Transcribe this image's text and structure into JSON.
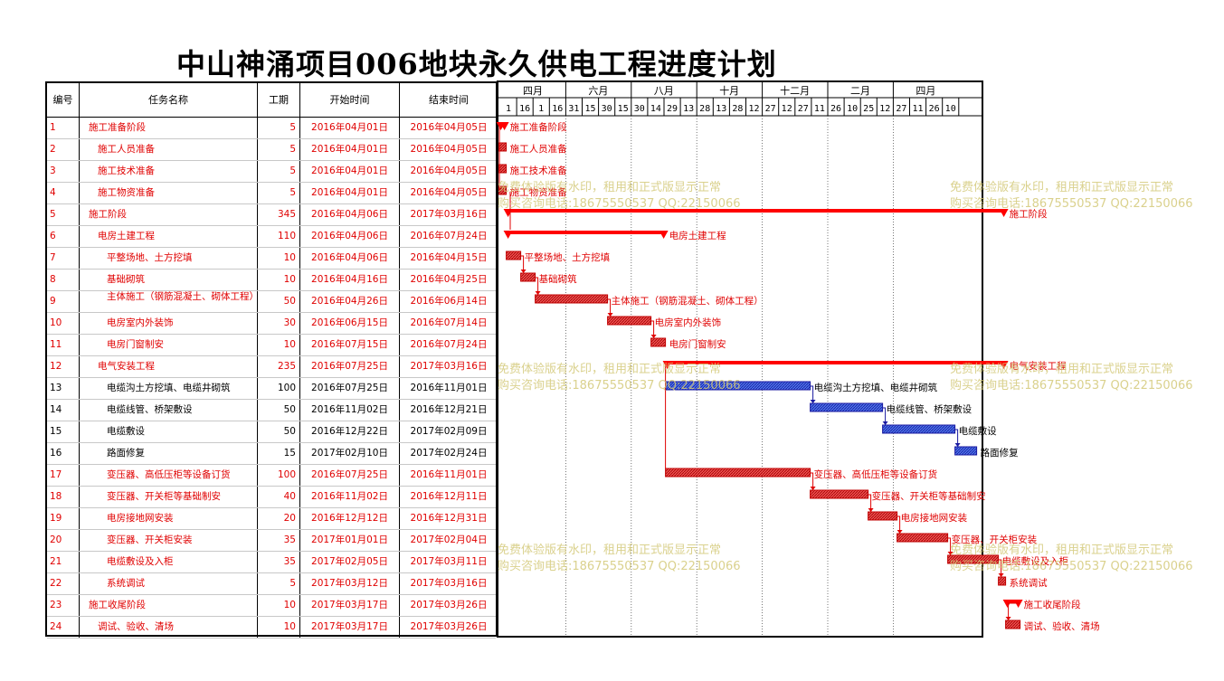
{
  "title": "中山神涌项目006地块永久供电工程进度计划",
  "columns": {
    "id": "编号",
    "name": "任务名称",
    "duration": "工期",
    "start": "开始时间",
    "end": "结束时间"
  },
  "timeline": {
    "months": [
      "四月",
      "六月",
      "八月",
      "十月",
      "十二月",
      "二月",
      "四月"
    ],
    "days": [
      "1",
      "16",
      "1",
      "16",
      "31",
      "15",
      "30",
      "15",
      "30",
      "14",
      "29",
      "13",
      "28",
      "13",
      "28",
      "12",
      "27",
      "12",
      "27",
      "11",
      "26",
      "10",
      "25",
      "12",
      "27",
      "11",
      "26",
      "10"
    ]
  },
  "watermark": {
    "line1": "免费体验版有水印，租用和正式版显示正常",
    "line2": "购买咨询电话:18675550537 QQ:22150066"
  },
  "chart_data": {
    "type": "gantt",
    "title": "中山神涌项目006地块永久供电工程进度计划",
    "tasks": [
      {
        "id": "1",
        "name": "施工准备阶段",
        "duration": "5",
        "start": "2016年04月01日",
        "end": "2016年04月05日",
        "indent": 0,
        "color": "red",
        "kind": "summary",
        "label": "施工准备阶段"
      },
      {
        "id": "2",
        "name": "施工人员准备",
        "duration": "5",
        "start": "2016年04月01日",
        "end": "2016年04月05日",
        "indent": 1,
        "color": "red",
        "kind": "task",
        "label": "施工人员准备"
      },
      {
        "id": "3",
        "name": "施工技术准备",
        "duration": "5",
        "start": "2016年04月01日",
        "end": "2016年04月05日",
        "indent": 1,
        "color": "red",
        "kind": "task",
        "label": "施工技术准备"
      },
      {
        "id": "4",
        "name": "施工物资准备",
        "duration": "5",
        "start": "2016年04月01日",
        "end": "2016年04月05日",
        "indent": 1,
        "color": "red",
        "kind": "task",
        "label": "施工物资准备"
      },
      {
        "id": "5",
        "name": "施工阶段",
        "duration": "345",
        "start": "2016年04月06日",
        "end": "2017年03月16日",
        "indent": 0,
        "color": "red",
        "kind": "summary",
        "label": "施工阶段"
      },
      {
        "id": "6",
        "name": "电房土建工程",
        "duration": "110",
        "start": "2016年04月06日",
        "end": "2016年07月24日",
        "indent": 1,
        "color": "red",
        "kind": "summary",
        "label": "电房土建工程"
      },
      {
        "id": "7",
        "name": "平整场地、土方挖填",
        "duration": "10",
        "start": "2016年04月06日",
        "end": "2016年04月15日",
        "indent": 2,
        "color": "red",
        "kind": "task",
        "label": "平整场地、土方挖填"
      },
      {
        "id": "8",
        "name": "基础砌筑",
        "duration": "10",
        "start": "2016年04月16日",
        "end": "2016年04月25日",
        "indent": 2,
        "color": "red",
        "kind": "task",
        "label": "基础砌筑"
      },
      {
        "id": "9",
        "name": "主体施工（钢筋混凝土、砌体工程）",
        "duration": "50",
        "start": "2016年04月26日",
        "end": "2016年06月14日",
        "indent": 2,
        "color": "red",
        "kind": "task",
        "label": "主体施工（钢筋混凝土、砌体工程）"
      },
      {
        "id": "10",
        "name": "电房室内外装饰",
        "duration": "30",
        "start": "2016年06月15日",
        "end": "2016年07月14日",
        "indent": 2,
        "color": "red",
        "kind": "task",
        "label": "电房室内外装饰"
      },
      {
        "id": "11",
        "name": "电房门窗制安",
        "duration": "10",
        "start": "2016年07月15日",
        "end": "2016年07月24日",
        "indent": 2,
        "color": "red",
        "kind": "task",
        "label": "电房门窗制安"
      },
      {
        "id": "12",
        "name": "电气安装工程",
        "duration": "235",
        "start": "2016年07月25日",
        "end": "2017年03月16日",
        "indent": 1,
        "color": "red",
        "kind": "summary",
        "label": "电气安装工程"
      },
      {
        "id": "13",
        "name": "电缆沟土方挖填、电缆井砌筑",
        "duration": "100",
        "start": "2016年07月25日",
        "end": "2016年11月01日",
        "indent": 2,
        "color": "black",
        "kind": "task",
        "label": "电缆沟土方挖填、电缆井砌筑"
      },
      {
        "id": "14",
        "name": "电缆线管、桥架敷设",
        "duration": "50",
        "start": "2016年11月02日",
        "end": "2016年12月21日",
        "indent": 2,
        "color": "black",
        "kind": "task",
        "label": "电缆线管、桥架敷设"
      },
      {
        "id": "15",
        "name": "电缆敷设",
        "duration": "50",
        "start": "2016年12月22日",
        "end": "2017年02月09日",
        "indent": 2,
        "color": "black",
        "kind": "task",
        "label": "电缆敷设"
      },
      {
        "id": "16",
        "name": "路面修复",
        "duration": "15",
        "start": "2017年02月10日",
        "end": "2017年02月24日",
        "indent": 2,
        "color": "black",
        "kind": "task",
        "label": "路面修复"
      },
      {
        "id": "17",
        "name": "变压器、高低压柜等设备订货",
        "duration": "100",
        "start": "2016年07月25日",
        "end": "2016年11月01日",
        "indent": 2,
        "color": "red",
        "kind": "task",
        "label": "变压器、高低压柜等设备订货"
      },
      {
        "id": "18",
        "name": "变压器、开关柜等基础制安",
        "duration": "40",
        "start": "2016年11月02日",
        "end": "2016年12月11日",
        "indent": 2,
        "color": "red",
        "kind": "task",
        "label": "变压器、开关柜等基础制安"
      },
      {
        "id": "19",
        "name": "电房接地网安装",
        "duration": "20",
        "start": "2016年12月12日",
        "end": "2016年12月31日",
        "indent": 2,
        "color": "red",
        "kind": "task",
        "label": "电房接地网安装"
      },
      {
        "id": "20",
        "name": "变压器、开关柜安装",
        "duration": "35",
        "start": "2017年01月01日",
        "end": "2017年02月04日",
        "indent": 2,
        "color": "red",
        "kind": "task",
        "label": "变压器、开关柜安装"
      },
      {
        "id": "21",
        "name": "电缆敷设及入柜",
        "duration": "35",
        "start": "2017年02月05日",
        "end": "2017年03月11日",
        "indent": 2,
        "color": "red",
        "kind": "task",
        "label": "电缆敷设及入柜"
      },
      {
        "id": "22",
        "name": "系统调试",
        "duration": "5",
        "start": "2017年03月12日",
        "end": "2017年03月16日",
        "indent": 2,
        "color": "red",
        "kind": "task",
        "label": "系统调试"
      },
      {
        "id": "23",
        "name": "施工收尾阶段",
        "duration": "10",
        "start": "2017年03月17日",
        "end": "2017年03月26日",
        "indent": 0,
        "color": "red",
        "kind": "summary",
        "label": "施工收尾阶段"
      },
      {
        "id": "24",
        "name": "调试、验收、清场",
        "duration": "10",
        "start": "2017年03月17日",
        "end": "2017年03月26日",
        "indent": 1,
        "color": "red",
        "kind": "task",
        "label": "调试、验收、清场"
      }
    ]
  }
}
